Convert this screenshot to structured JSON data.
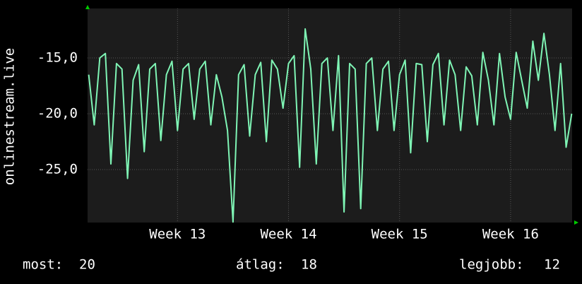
{
  "chart_data": {
    "type": "line",
    "ylabel": "onlinestream.live",
    "x": [
      12.2,
      12.25,
      12.3,
      12.35,
      12.4,
      12.45,
      12.5,
      12.55,
      12.6,
      12.65,
      12.7,
      12.75,
      12.8,
      12.85,
      12.9,
      12.95,
      13.0,
      13.05,
      13.1,
      13.15,
      13.2,
      13.25,
      13.3,
      13.35,
      13.4,
      13.45,
      13.5,
      13.55,
      13.6,
      13.65,
      13.7,
      13.75,
      13.8,
      13.85,
      13.9,
      13.95,
      14.0,
      14.05,
      14.1,
      14.15,
      14.2,
      14.25,
      14.3,
      14.35,
      14.4,
      14.45,
      14.5,
      14.55,
      14.6,
      14.65,
      14.7,
      14.75,
      14.8,
      14.85,
      14.9,
      14.95,
      15.0,
      15.05,
      15.1,
      15.15,
      15.2,
      15.25,
      15.3,
      15.35,
      15.4,
      15.45,
      15.5,
      15.55,
      15.6,
      15.65,
      15.7,
      15.75,
      15.8,
      15.85,
      15.9,
      15.95,
      16.0,
      16.05,
      16.1,
      16.15,
      16.2,
      16.25,
      16.3,
      16.35,
      16.4,
      16.45,
      16.5,
      16.55
    ],
    "series": [
      {
        "color": "#7ff5b5",
        "values": [
          -16.5,
          -21,
          -15,
          -14.6,
          -24.5,
          -15.5,
          -16,
          -25.8,
          -17,
          -15.6,
          -23.4,
          -16,
          -15.5,
          -22.4,
          -16.5,
          -15.3,
          -21.5,
          -16,
          -15.5,
          -20.5,
          -16,
          -15.3,
          -21,
          -16.5,
          -18.5,
          -21.5,
          -29.7,
          -16.5,
          -15.6,
          -22,
          -16.5,
          -15.4,
          -22.5,
          -15.2,
          -16,
          -19.5,
          -15.5,
          -14.8,
          -24.8,
          -12.4,
          -16,
          -24.5,
          -15.5,
          -15,
          -21.5,
          -14.8,
          -28.8,
          -15.5,
          -16,
          -28.5,
          -15.5,
          -15,
          -21.5,
          -16,
          -15.3,
          -21.5,
          -16.5,
          -15.2,
          -23.5,
          -15.5,
          -15.6,
          -22.5,
          -15.6,
          -14.6,
          -21,
          -15.2,
          -16.5,
          -21.5,
          -15.8,
          -16.6,
          -21,
          -14.5,
          -17,
          -21,
          -14.6,
          -18.5,
          -20.5,
          -14.5,
          -17,
          -19.5,
          -13.5,
          -17,
          -12.8,
          -16.5,
          -21.5,
          -15.5,
          -23,
          -20
        ]
      }
    ],
    "xlim": [
      12.19,
      16.554
    ],
    "xticks": [
      {
        "value": 13,
        "label": "Week 13"
      },
      {
        "value": 14,
        "label": "Week 14"
      },
      {
        "value": 15,
        "label": "Week 15"
      },
      {
        "value": 16,
        "label": "Week 16"
      }
    ],
    "ylim": [
      -29.75,
      -10.57
    ],
    "yticks": [
      {
        "value": -15,
        "label": "-15,0"
      },
      {
        "value": -20,
        "label": "-20,0"
      },
      {
        "value": -25,
        "label": "-25,0"
      }
    ],
    "grid": true,
    "footer": [
      {
        "label": "most:",
        "value": 20
      },
      {
        "label": "átlag:",
        "value": 18
      },
      {
        "label": "legjobb:",
        "value": 12
      }
    ]
  }
}
